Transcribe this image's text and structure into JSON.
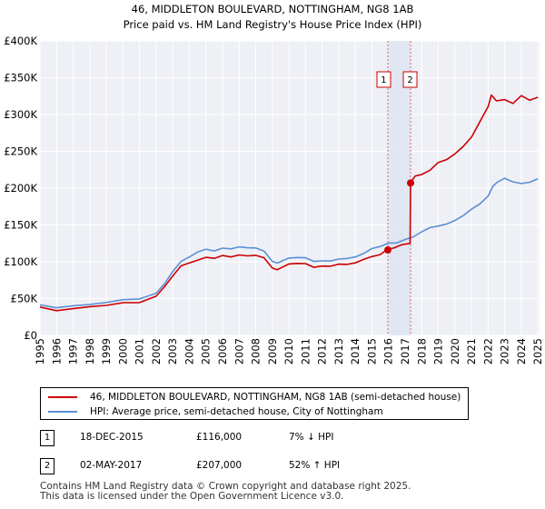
{
  "chart_data": {
    "type": "line",
    "title": "46, MIDDLETON BOULEVARD, NOTTINGHAM, NG8 1AB",
    "subtitle": "Price paid vs. HM Land Registry's House Price Index (HPI)",
    "xlabel": "",
    "ylabel": "",
    "xlim": [
      1995,
      2025.1
    ],
    "ylim": [
      0,
      400000
    ],
    "x_ticks": [
      "1995",
      "1996",
      "1997",
      "1998",
      "1999",
      "2000",
      "2001",
      "2002",
      "2003",
      "2004",
      "2005",
      "2006",
      "2007",
      "2008",
      "2009",
      "2010",
      "2011",
      "2012",
      "2013",
      "2014",
      "2015",
      "2016",
      "2017",
      "2018",
      "2019",
      "2020",
      "2021",
      "2022",
      "2023",
      "2024",
      "2025"
    ],
    "y_ticks": [
      {
        "value": 0,
        "label": "£0"
      },
      {
        "value": 50000,
        "label": "£50K"
      },
      {
        "value": 100000,
        "label": "£100K"
      },
      {
        "value": 150000,
        "label": "£150K"
      },
      {
        "value": 200000,
        "label": "£200K"
      },
      {
        "value": 250000,
        "label": "£250K"
      },
      {
        "value": 300000,
        "label": "£300K"
      },
      {
        "value": 350000,
        "label": "£350K"
      },
      {
        "value": 400000,
        "label": "£400K"
      }
    ],
    "grid": true,
    "series": [
      {
        "name": "46, MIDDLETON BOULEVARD, NOTTINGHAM, NG8 1AB (semi-detached house)",
        "color": "#cc0000",
        "x": [
          1995,
          1996,
          1997,
          1998,
          1999,
          2000,
          2001,
          2002,
          2002.5,
          2003,
          2003.5,
          2004,
          2004.5,
          2005,
          2005.5,
          2006,
          2006.5,
          2007,
          2007.5,
          2008,
          2008.5,
          2009,
          2009.3,
          2010,
          2010.5,
          2011,
          2011.5,
          2012,
          2012.5,
          2013,
          2013.5,
          2014,
          2014.5,
          2015,
          2015.5,
          2015.96,
          2016.3,
          2016.8,
          2017.3,
          2017.33,
          2017.6,
          2018,
          2018.5,
          2019,
          2019.5,
          2020,
          2020.5,
          2021,
          2021.5,
          2022,
          2022.2,
          2022.5,
          2023,
          2023.5,
          2024,
          2024.5,
          2025
        ],
        "values": [
          37000,
          35000,
          37000,
          39000,
          40000,
          43000,
          46000,
          54000,
          66000,
          80000,
          93000,
          100000,
          103000,
          106000,
          104000,
          107000,
          108000,
          110000,
          108000,
          108000,
          104000,
          93000,
          90000,
          97000,
          97000,
          96000,
          94000,
          95000,
          94000,
          96000,
          95000,
          100000,
          104000,
          107000,
          109000,
          116000,
          120000,
          124000,
          125000,
          207000,
          215000,
          220000,
          225000,
          235000,
          238000,
          245000,
          258000,
          270000,
          290000,
          310000,
          325000,
          320000,
          321000,
          315000,
          325000,
          318000,
          325000
        ]
      },
      {
        "name": "HPI: Average price, semi-detached house, City of Nottingham",
        "color": "#5b8fd4",
        "x": [
          1995,
          1996,
          1997,
          1998,
          1999,
          2000,
          2001,
          2002,
          2002.5,
          2003,
          2003.5,
          2004,
          2004.5,
          2005,
          2005.5,
          2006,
          2006.5,
          2007,
          2007.5,
          2008,
          2008.5,
          2009,
          2009.3,
          2010,
          2010.5,
          2011,
          2011.5,
          2012,
          2012.5,
          2013,
          2013.5,
          2014,
          2014.5,
          2015,
          2015.5,
          2016,
          2016.5,
          2017,
          2017.5,
          2018,
          2018.5,
          2019,
          2019.5,
          2020,
          2020.5,
          2021,
          2021.5,
          2022,
          2022.3,
          2022.6,
          2023,
          2023.5,
          2024,
          2024.5,
          2025
        ],
        "values": [
          40000,
          39000,
          41000,
          42000,
          44000,
          47000,
          51000,
          58000,
          70000,
          86000,
          99000,
          108000,
          114000,
          117000,
          114000,
          117000,
          119000,
          121000,
          119000,
          118000,
          113000,
          102000,
          99000,
          105000,
          105000,
          104000,
          102000,
          102000,
          101000,
          103000,
          103000,
          108000,
          112000,
          118000,
          120000,
          124000,
          127000,
          131000,
          134000,
          140000,
          145000,
          150000,
          152000,
          156000,
          162000,
          170000,
          180000,
          190000,
          203000,
          208000,
          212000,
          210000,
          207000,
          208000,
          212000
        ]
      }
    ],
    "transactions": [
      {
        "id": "1",
        "x": 2015.96,
        "value": 116000,
        "date": "18-DEC-2015",
        "price": "£116,000",
        "hpi": "7% ↓ HPI"
      },
      {
        "id": "2",
        "x": 2017.33,
        "value": 207000,
        "date": "02-MAY-2017",
        "price": "£207,000",
        "hpi": "52% ↑ HPI"
      }
    ]
  },
  "footer": {
    "line1": "Contains HM Land Registry data © Crown copyright and database right 2025.",
    "line2": "This data is licensed under the Open Government Licence v3.0."
  }
}
